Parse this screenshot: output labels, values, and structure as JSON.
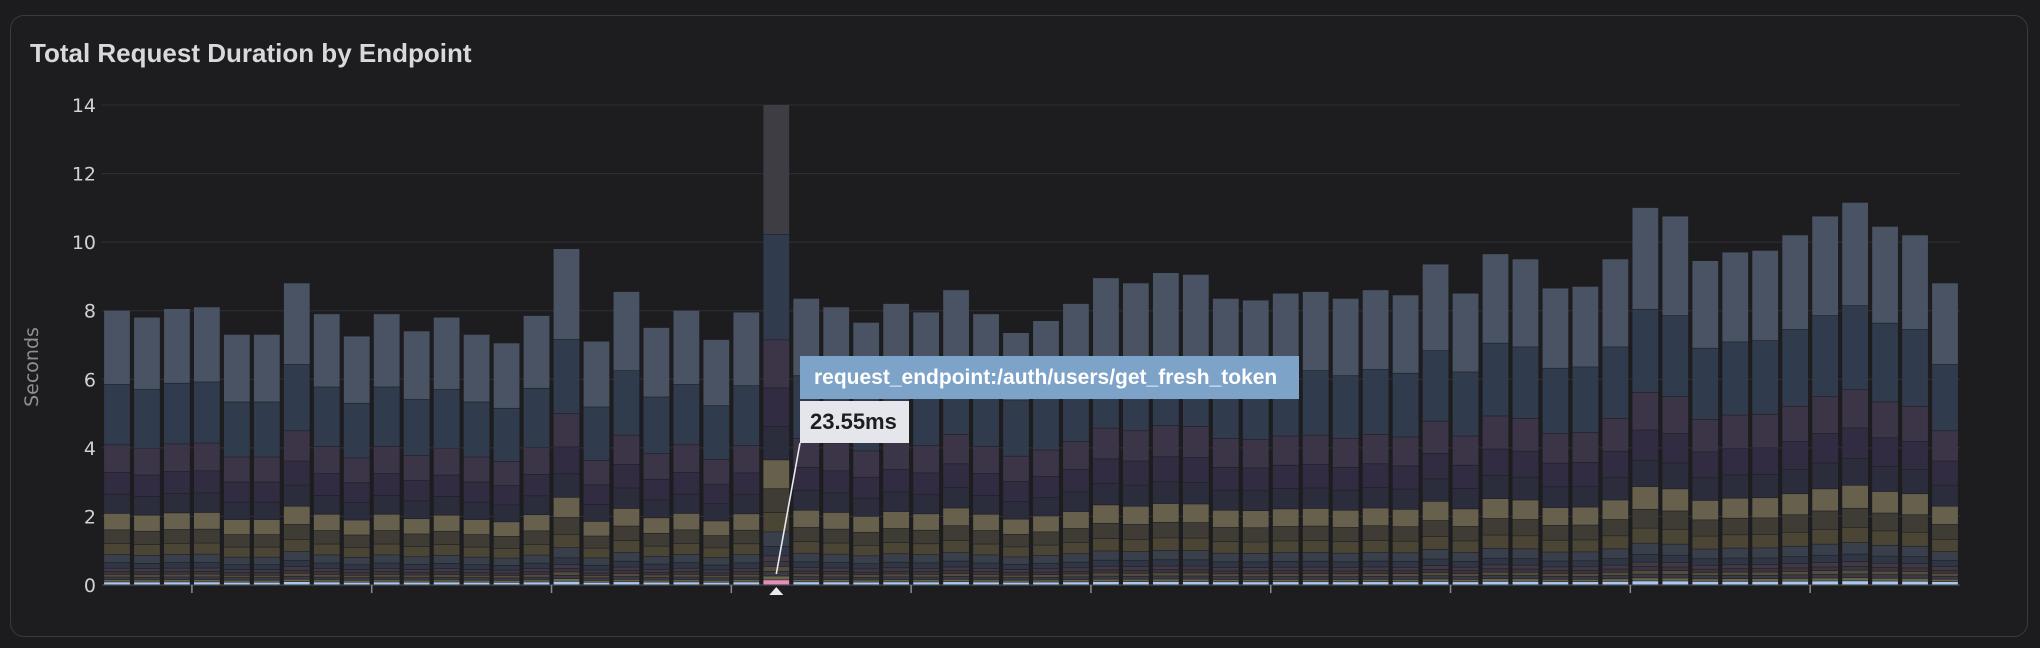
{
  "panel": {
    "title": "Total Request Duration by Endpoint"
  },
  "tooltip": {
    "endpoint": "request_endpoint:/auth/users/get_fresh_token",
    "value": "23.55ms"
  },
  "chart_data": {
    "type": "bar",
    "stacked": true,
    "title": "Total Request Duration by Endpoint",
    "ylabel": "Seconds",
    "xlabel": "",
    "ylim": [
      0,
      14
    ],
    "yticks": [
      0,
      2,
      4,
      6,
      8,
      10,
      12,
      14
    ],
    "grid": true,
    "highlighted_bar_index": 22,
    "highlighted_series": "request_endpoint:/auth/users/get_fresh_token",
    "totals": [
      8.0,
      7.8,
      8.05,
      8.1,
      7.3,
      7.3,
      8.8,
      7.9,
      7.25,
      7.9,
      7.4,
      7.8,
      7.3,
      7.05,
      7.85,
      9.8,
      7.1,
      8.55,
      7.5,
      8.0,
      7.15,
      7.95,
      14.0,
      8.35,
      8.1,
      7.65,
      8.2,
      7.95,
      8.6,
      7.9,
      7.35,
      7.7,
      8.2,
      8.95,
      8.8,
      9.1,
      9.05,
      8.35,
      8.3,
      8.5,
      8.55,
      8.35,
      8.6,
      8.45,
      9.35,
      8.5,
      9.65,
      9.5,
      8.65,
      8.7,
      9.5,
      11.0,
      10.75,
      9.45,
      9.7,
      9.75,
      10.2,
      10.75,
      11.15,
      10.45,
      10.2,
      8.8
    ],
    "series_colors": [
      "#495363",
      "#313b4e",
      "#3c3547",
      "#312c41",
      "#2b2d3c",
      "#66604d",
      "#3f3c35",
      "#4b4536",
      "#3a3f4c",
      "#2f3646",
      "#433944",
      "#3a3542",
      "#544d3e",
      "#3b3a42",
      "#6a6650",
      "#a8c8f0"
    ],
    "series_fractions": [
      0.27,
      0.22,
      0.1,
      0.08,
      0.07,
      0.06,
      0.05,
      0.04,
      0.03,
      0.02,
      0.012,
      0.01,
      0.01,
      0.01,
      0.008,
      0.01
    ]
  }
}
